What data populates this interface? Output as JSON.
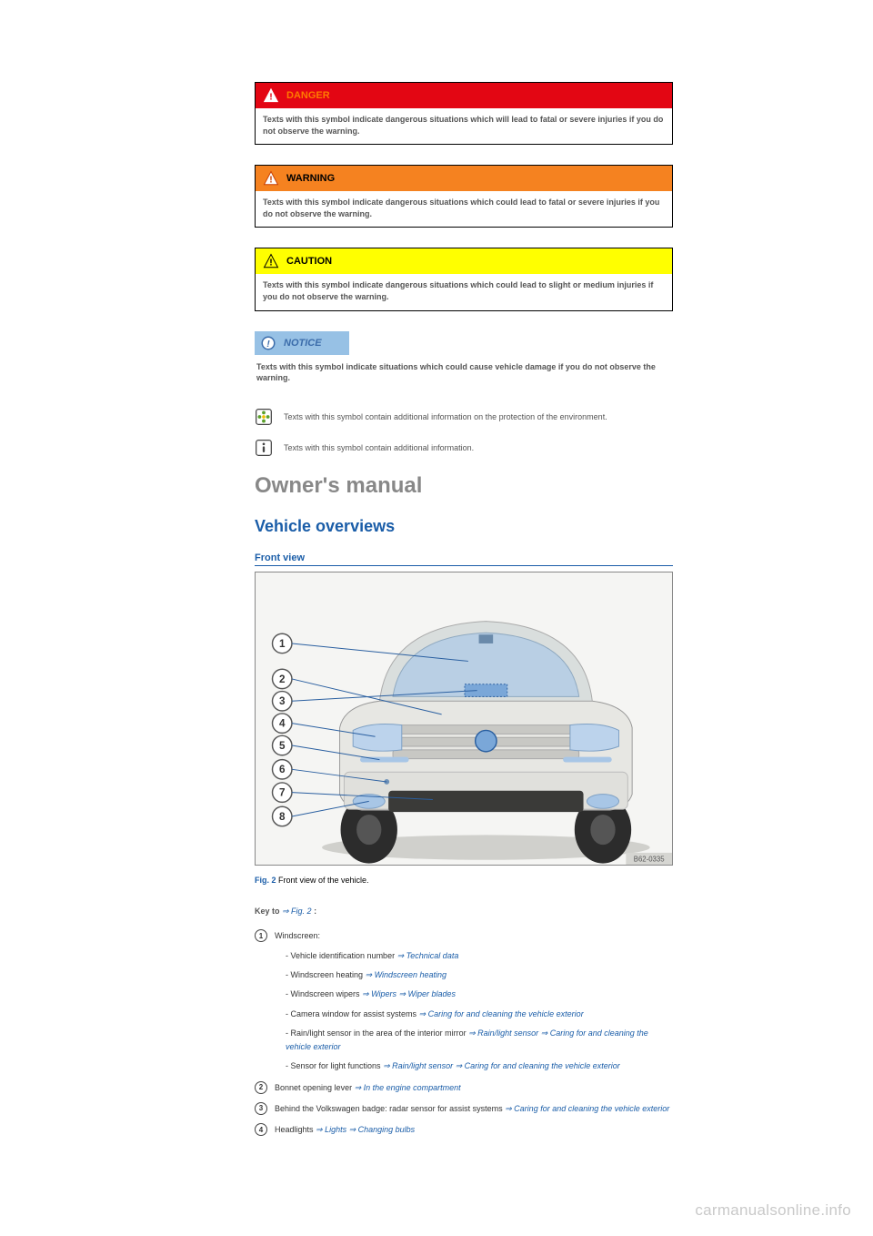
{
  "colors": {
    "danger_bg": "#e30613",
    "danger_text": "#ff7a00",
    "warning_bg": "#f58220",
    "warning_text": "#000000",
    "caution_bg": "#ffff00",
    "caution_text": "#000000",
    "notice_bg": "#97c1e5",
    "notice_text": "#3b6caa",
    "link_blue": "#1a5da8",
    "heading2": "#1a5da8",
    "subsection": "#1a5da8",
    "gray_text": "#555555",
    "fig_blue": "#1a5da8"
  },
  "alerts": {
    "danger": {
      "title": "DANGER",
      "body": "Texts with this symbol indicate dangerous situations which will lead to fatal or severe injuries if you do not observe the warning."
    },
    "warning": {
      "title": "WARNING",
      "body": "Texts with this symbol indicate dangerous situations which could lead to fatal or severe injuries if you do not observe the warning."
    },
    "caution": {
      "title": "CAUTION",
      "body": "Texts with this symbol indicate dangerous situations which could lead to slight or medium injuries if you do not observe the warning."
    },
    "notice": {
      "title": "NOTICE",
      "body": "Texts with this symbol indicate situations which could cause vehicle damage if you do not observe the warning."
    }
  },
  "info_rows": {
    "env": "Texts with this symbol contain additional information on the protection of the environment.",
    "info": "Texts with this symbol contain additional information."
  },
  "headings": {
    "owners": "Owner's manual",
    "vehicle_overviews": "Vehicle overviews",
    "front_view": "Front view"
  },
  "figure": {
    "label": "Fig. 2",
    "caption": " Front view of the vehicle.",
    "image_code": "B62-0335",
    "markers": [
      "1",
      "2",
      "3",
      "4",
      "5",
      "6",
      "7",
      "8"
    ]
  },
  "keyto": {
    "prefix": "Key to ",
    "ref": "⇒ Fig. 2",
    "suffix": " :"
  },
  "keys": [
    {
      "num": "1",
      "lead": "Windscreen:",
      "subs": [
        {
          "t": "- Vehicle identification number ",
          "l": "⇒ Technical data"
        },
        {
          "t": "- Windscreen heating ",
          "l": "⇒ Windscreen heating"
        },
        {
          "t": "- Windscreen wipers ",
          "l": "⇒ Wipers ⇒ Wiper blades"
        },
        {
          "t": "- Camera window for assist systems ",
          "l": "⇒ Caring for and cleaning the vehicle exterior"
        },
        {
          "t": "- Rain/light sensor in the area of the interior mirror ",
          "l": "⇒ Rain/light sensor ⇒ Caring for and cleaning the vehicle exterior"
        },
        {
          "t": "- Sensor for light functions ",
          "l": "⇒ Rain/light sensor ⇒ Caring for and cleaning the vehicle exterior"
        }
      ]
    },
    {
      "num": "2",
      "lead": "Bonnet opening lever ",
      "link": "⇒ In the engine compartment"
    },
    {
      "num": "3",
      "lead": "Behind the Volkswagen badge: radar sensor for assist systems ",
      "link": "⇒ Caring for and cleaning the vehicle exterior"
    },
    {
      "num": "4",
      "lead": "Headlights ",
      "link": "⇒ Lights ⇒ Changing bulbs"
    }
  ],
  "watermark": "carmanualsonline.info"
}
